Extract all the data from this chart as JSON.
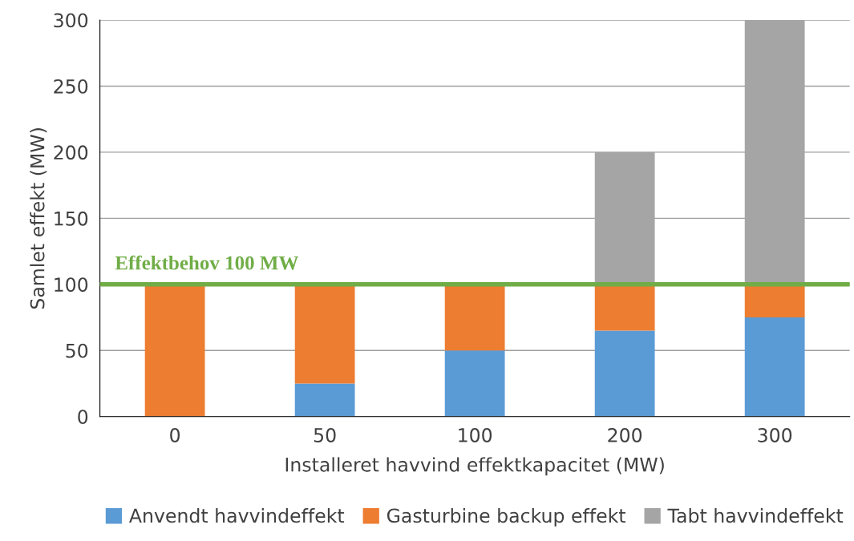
{
  "chart_data": {
    "type": "bar",
    "stacked": true,
    "categories": [
      "0",
      "50",
      "100",
      "200",
      "300"
    ],
    "series": [
      {
        "name": "Anvendt havvindeffekt",
        "color": "#5b9bd5",
        "values": [
          0,
          25,
          50,
          65,
          75
        ]
      },
      {
        "name": "Gasturbine backup effekt",
        "color": "#ed7d31",
        "values": [
          100,
          75,
          50,
          35,
          25
        ]
      },
      {
        "name": "Tabt havvindeffekt",
        "color": "#a5a5a5",
        "values": [
          0,
          0,
          0,
          100,
          200
        ]
      }
    ],
    "xlabel": "Installeret havvind effektkapacitet (MW)",
    "ylabel": "Samlet effekt (MW)",
    "ylim": [
      0,
      300
    ],
    "yticks": [
      0,
      50,
      100,
      150,
      200,
      250,
      300
    ],
    "grid": "y",
    "legend": "bottom",
    "ref_lines": [
      {
        "axis": "y",
        "value": 100,
        "label": "Effektbehov 100 MW",
        "color": "#70ad47"
      }
    ]
  }
}
